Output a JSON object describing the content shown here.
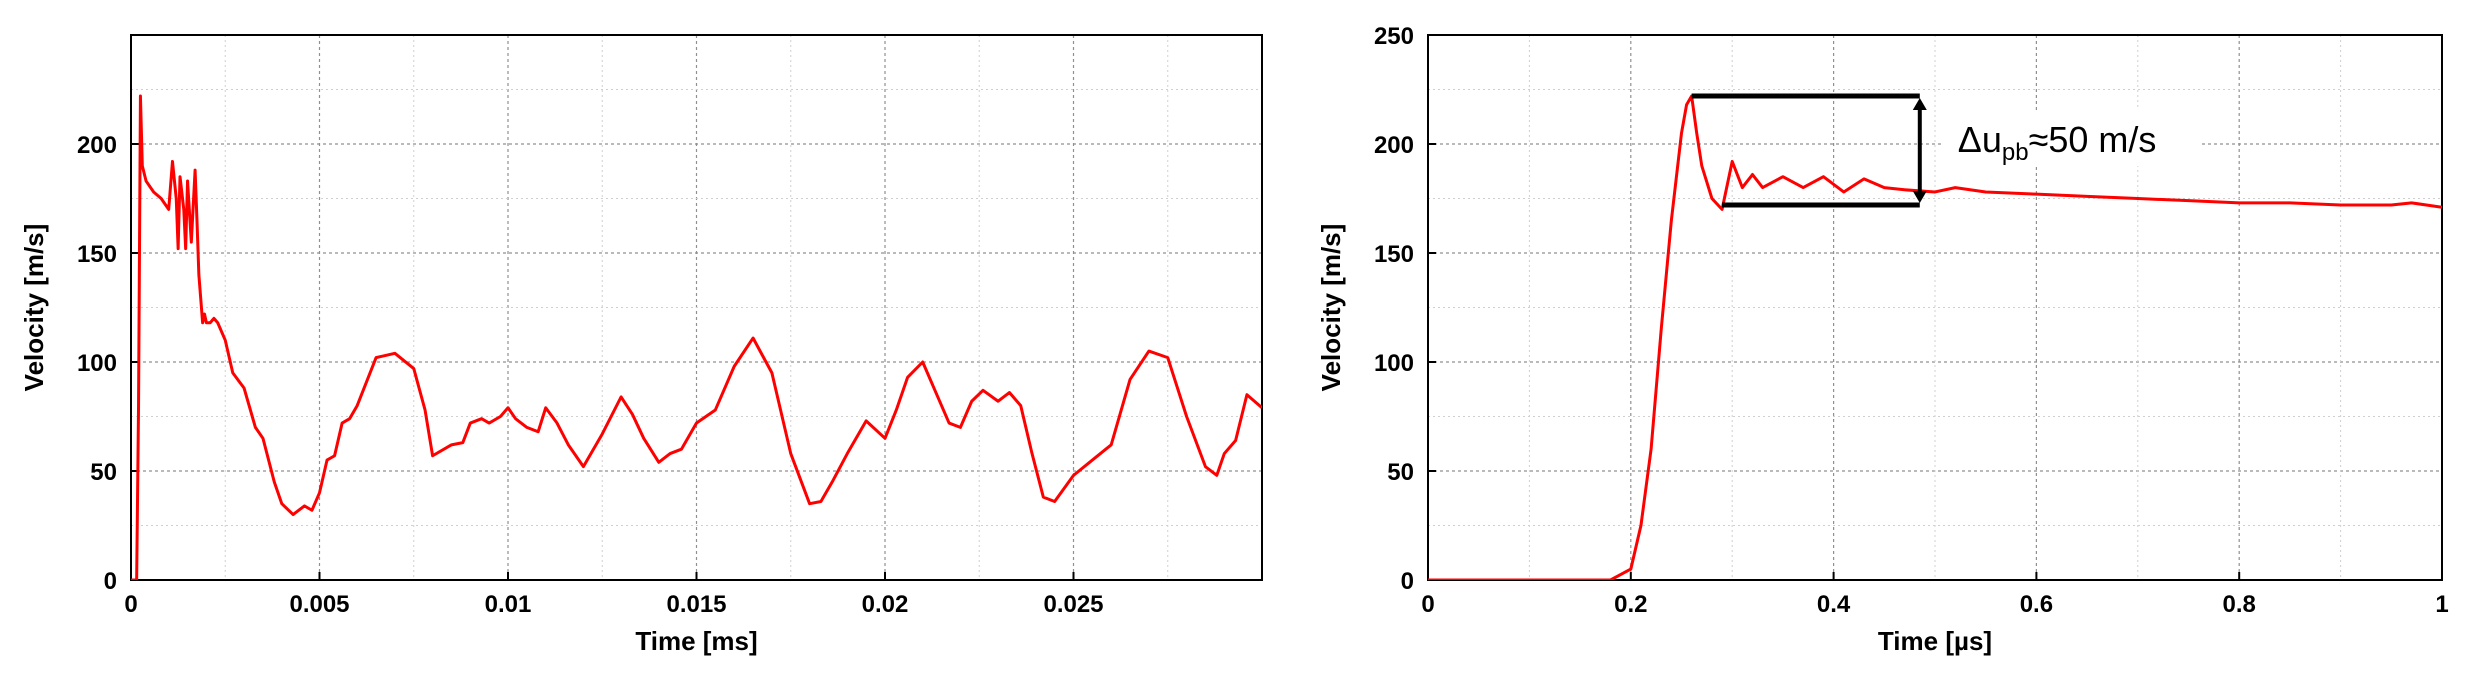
{
  "chart_data": [
    {
      "type": "line",
      "xlabel": "Time [ms]",
      "ylabel": "Velocity [m/s]",
      "xlim": [
        0,
        0.03
      ],
      "ylim": [
        0,
        250
      ],
      "x_ticks": [
        0,
        0.005,
        0.01,
        0.015,
        0.02,
        0.025
      ],
      "x_tick_labels": [
        "0",
        "0.005",
        "0.01",
        "0.015",
        "0.02",
        "0.025"
      ],
      "y_ticks": [
        0,
        50,
        100,
        150,
        200
      ],
      "y_tick_labels": [
        "0",
        "50",
        "100",
        "150",
        "200"
      ],
      "grid": true,
      "line_color": "#ff0000",
      "series": [
        {
          "x": [
            0,
            0.00015,
            0.0002,
            0.00025,
            0.0003,
            0.0004,
            0.0006,
            0.0008,
            0.001,
            0.0011,
            0.0012,
            0.00125,
            0.0013,
            0.0014,
            0.00145,
            0.0015,
            0.0016,
            0.0017,
            0.00175,
            0.0018,
            0.0019,
            0.00195,
            0.002,
            0.0021,
            0.0022,
            0.0023,
            0.0025,
            0.0027,
            0.003,
            0.0033,
            0.0035,
            0.0038,
            0.004,
            0.0043,
            0.0046,
            0.0048,
            0.005,
            0.0052,
            0.0054,
            0.0056,
            0.0058,
            0.006,
            0.0065,
            0.007,
            0.0075,
            0.0078,
            0.008,
            0.0085,
            0.0088,
            0.009,
            0.0093,
            0.0095,
            0.0098,
            0.01,
            0.0102,
            0.0105,
            0.0108,
            0.011,
            0.0113,
            0.0116,
            0.012,
            0.0125,
            0.013,
            0.0133,
            0.0136,
            0.014,
            0.0143,
            0.0146,
            0.015,
            0.0155,
            0.016,
            0.0165,
            0.017,
            0.0175,
            0.018,
            0.0183,
            0.0186,
            0.019,
            0.0195,
            0.02,
            0.0203,
            0.0206,
            0.021,
            0.0213,
            0.0217,
            0.022,
            0.0223,
            0.0226,
            0.023,
            0.0233,
            0.0236,
            0.0239,
            0.0242,
            0.0245,
            0.025,
            0.0255,
            0.026,
            0.0265,
            0.027,
            0.0275,
            0.028,
            0.0285,
            0.0288,
            0.029,
            0.0293,
            0.0296,
            0.03
          ],
          "y": [
            0,
            0,
            80,
            222,
            190,
            183,
            178,
            175,
            170,
            192,
            175,
            152,
            185,
            170,
            152,
            183,
            155,
            188,
            165,
            140,
            118,
            122,
            118,
            118,
            120,
            118,
            110,
            95,
            88,
            70,
            65,
            45,
            35,
            30,
            34,
            32,
            40,
            55,
            57,
            72,
            74,
            80,
            102,
            104,
            97,
            78,
            57,
            62,
            63,
            72,
            74,
            72,
            75,
            79,
            74,
            70,
            68,
            79,
            72,
            62,
            52,
            67,
            84,
            76,
            65,
            54,
            58,
            60,
            72,
            78,
            98,
            111,
            95,
            58,
            35,
            36,
            45,
            58,
            73,
            65,
            78,
            93,
            100,
            88,
            72,
            70,
            82,
            87,
            82,
            86,
            80,
            58,
            38,
            36,
            48,
            55,
            62,
            92,
            105,
            102,
            75,
            52,
            48,
            58,
            64,
            85,
            79
          ]
        }
      ]
    },
    {
      "type": "line",
      "xlabel": "Time [µs]",
      "ylabel": "Velocity [m/s]",
      "xlim": [
        0,
        1
      ],
      "ylim": [
        0,
        250
      ],
      "x_ticks": [
        0,
        0.2,
        0.4,
        0.6,
        0.8,
        1
      ],
      "x_tick_labels": [
        "0",
        "0.2",
        "0.4",
        "0.6",
        "0.8",
        "1"
      ],
      "y_ticks": [
        0,
        50,
        100,
        150,
        200,
        250
      ],
      "y_tick_labels": [
        "0",
        "50",
        "100",
        "150",
        "200",
        "250"
      ],
      "grid": true,
      "line_color": "#ff0000",
      "series": [
        {
          "x": [
            0,
            0.18,
            0.2,
            0.21,
            0.22,
            0.23,
            0.24,
            0.25,
            0.255,
            0.26,
            0.265,
            0.27,
            0.28,
            0.29,
            0.3,
            0.31,
            0.32,
            0.33,
            0.35,
            0.37,
            0.39,
            0.41,
            0.43,
            0.45,
            0.47,
            0.5,
            0.52,
            0.55,
            0.6,
            0.65,
            0.7,
            0.75,
            0.8,
            0.85,
            0.9,
            0.95,
            0.97,
            1.0
          ],
          "y": [
            0,
            0,
            5,
            25,
            60,
            115,
            165,
            205,
            218,
            222,
            205,
            190,
            175,
            170,
            192,
            180,
            186,
            180,
            185,
            180,
            185,
            178,
            184,
            180,
            179,
            178,
            180,
            178,
            177,
            176,
            175,
            174,
            173,
            173,
            172,
            172,
            173,
            171
          ]
        }
      ],
      "annotation": {
        "delta": "Δu",
        "subscript": "pb",
        "rest": "≈50 m/s",
        "bracket_top": 222,
        "bracket_bottom": 172,
        "bracket_x_start": 0.26,
        "bracket_x_end": 0.485
      }
    }
  ]
}
